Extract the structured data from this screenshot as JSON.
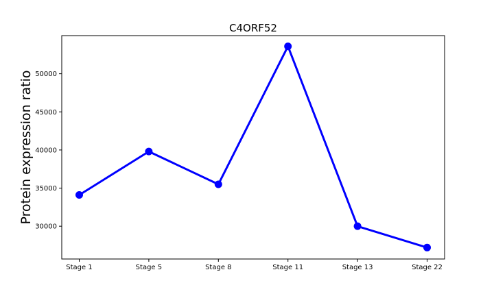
{
  "chart_data": {
    "type": "line",
    "title": "C4ORF52",
    "xlabel": "",
    "ylabel": "Protein expression ratio",
    "categories": [
      "Stage 1",
      "Stage 5",
      "Stage 8",
      "Stage 11",
      "Stage 13",
      "Stage 22"
    ],
    "series": [
      {
        "values": [
          34100,
          39800,
          35500,
          53600,
          30000,
          27200
        ]
      }
    ],
    "ylim": [
      25700,
      55000
    ],
    "yticks": [
      30000,
      35000,
      40000,
      45000,
      50000
    ],
    "ytick_labels": [
      "30000",
      "35000",
      "40000",
      "45000",
      "50000"
    ],
    "line_color": "#0000ff",
    "grid": false,
    "legend": "none"
  }
}
